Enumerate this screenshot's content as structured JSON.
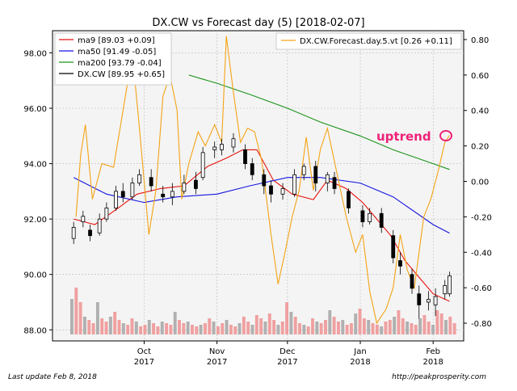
{
  "footer": {
    "last_update": "Last update Feb  8, 2018",
    "source_url": "http://peakprosperity.com"
  },
  "colors": {
    "ma9": "#e8120c",
    "ma50": "#1515e0",
    "ma200": "#1a931a",
    "forecast": "#f4a315",
    "candle_outline": "#000000",
    "volume_up": "#b0b0b0",
    "volume_down": "#f0a0a0",
    "annotation": "#ee2277",
    "plot_bg": "#f4f4f4"
  },
  "chart_data": {
    "type": "line",
    "title": "DX.CW vs Forecast day (5)  [2018-02-07]",
    "annotation": "uptrend",
    "grid": true,
    "legend_placement": "top-left and top-right",
    "x_ticks": [
      {
        "month": "Oct",
        "year": "2017",
        "date": "2017-10-01"
      },
      {
        "month": "Nov",
        "year": "2017",
        "date": "2017-11-01"
      },
      {
        "month": "Dec",
        "year": "2017",
        "date": "2017-12-01"
      },
      {
        "month": "Jan",
        "year": "2018",
        "date": "2018-01-01"
      },
      {
        "month": "Feb",
        "year": "2018",
        "date": "2018-02-01"
      }
    ],
    "x_range": [
      "2017-08-23",
      "2018-02-14"
    ],
    "y_left": {
      "range": [
        87.6,
        98.8
      ],
      "ticks": [
        "88.00",
        "90.00",
        "92.00",
        "94.00",
        "96.00",
        "98.00"
      ]
    },
    "y_right": {
      "range": [
        -0.9,
        0.85
      ],
      "ticks": [
        "-0.80",
        "-0.60",
        "-0.40",
        "-0.20",
        "0.00",
        "0.20",
        "0.40",
        "0.60",
        "0.80"
      ]
    },
    "legend_left": [
      {
        "key": "ma9",
        "label": "ma9 [89.03 +0.09]"
      },
      {
        "key": "ma50",
        "label": "ma50 [91.49 -0.05]"
      },
      {
        "key": "ma200",
        "label": "ma200 [93.79 -0.04]"
      },
      {
        "key": "candle",
        "label": "DX.CW [89.95 +0.65]"
      }
    ],
    "legend_right": {
      "key": "forecast",
      "label": "DX.CW.Forecast.day.5.vt [0.26 +0.11]"
    },
    "series": [
      {
        "name": "ma9",
        "axis": "left",
        "points": [
          [
            "2017-09-01",
            92.0
          ],
          [
            "2017-09-10",
            91.8
          ],
          [
            "2017-09-20",
            92.4
          ],
          [
            "2017-09-28",
            92.9
          ],
          [
            "2017-10-08",
            93.1
          ],
          [
            "2017-10-18",
            93.2
          ],
          [
            "2017-10-28",
            93.9
          ],
          [
            "2017-11-05",
            94.2
          ],
          [
            "2017-11-12",
            94.5
          ],
          [
            "2017-11-18",
            94.5
          ],
          [
            "2017-11-25",
            93.4
          ],
          [
            "2017-12-03",
            92.9
          ],
          [
            "2017-12-12",
            92.7
          ],
          [
            "2017-12-18",
            93.4
          ],
          [
            "2017-12-26",
            93.1
          ],
          [
            "2018-01-02",
            92.6
          ],
          [
            "2018-01-08",
            92.0
          ],
          [
            "2018-01-14",
            91.4
          ],
          [
            "2018-01-20",
            90.5
          ],
          [
            "2018-01-27",
            89.8
          ],
          [
            "2018-02-01",
            89.3
          ],
          [
            "2018-02-08",
            89.03
          ]
        ]
      },
      {
        "name": "ma50",
        "axis": "left",
        "points": [
          [
            "2017-09-01",
            93.5
          ],
          [
            "2017-09-15",
            92.9
          ],
          [
            "2017-10-01",
            92.6
          ],
          [
            "2017-10-15",
            92.8
          ],
          [
            "2017-11-01",
            92.9
          ],
          [
            "2017-11-15",
            93.2
          ],
          [
            "2017-12-01",
            93.5
          ],
          [
            "2017-12-15",
            93.5
          ],
          [
            "2018-01-01",
            93.3
          ],
          [
            "2018-01-15",
            92.8
          ],
          [
            "2018-02-01",
            91.8
          ],
          [
            "2018-02-08",
            91.49
          ]
        ]
      },
      {
        "name": "ma200",
        "axis": "left",
        "points": [
          [
            "2017-10-20",
            97.2
          ],
          [
            "2017-11-01",
            96.9
          ],
          [
            "2017-11-15",
            96.5
          ],
          [
            "2017-12-01",
            96.0
          ],
          [
            "2017-12-15",
            95.5
          ],
          [
            "2018-01-01",
            95.0
          ],
          [
            "2018-01-15",
            94.5
          ],
          [
            "2018-02-01",
            94.0
          ],
          [
            "2018-02-08",
            93.79
          ]
        ]
      },
      {
        "name": "DX.CW.Forecast.day.5.vt",
        "axis": "right",
        "points": [
          [
            "2017-09-02",
            -0.2
          ],
          [
            "2017-09-04",
            0.15
          ],
          [
            "2017-09-06",
            0.32
          ],
          [
            "2017-09-09",
            -0.1
          ],
          [
            "2017-09-13",
            0.1
          ],
          [
            "2017-09-18",
            0.08
          ],
          [
            "2017-09-22",
            0.4
          ],
          [
            "2017-09-26",
            0.72
          ],
          [
            "2017-09-29",
            0.3
          ],
          [
            "2017-10-03",
            -0.3
          ],
          [
            "2017-10-06",
            -0.05
          ],
          [
            "2017-10-09",
            0.48
          ],
          [
            "2017-10-12",
            0.6
          ],
          [
            "2017-10-15",
            0.4
          ],
          [
            "2017-10-17",
            -0.1
          ],
          [
            "2017-10-20",
            0.1
          ],
          [
            "2017-10-24",
            0.28
          ],
          [
            "2017-10-27",
            0.2
          ],
          [
            "2017-10-31",
            0.32
          ],
          [
            "2017-11-03",
            0.22
          ],
          [
            "2017-11-05",
            0.82
          ],
          [
            "2017-11-08",
            0.5
          ],
          [
            "2017-11-11",
            0.22
          ],
          [
            "2017-11-14",
            0.3
          ],
          [
            "2017-11-17",
            0.28
          ],
          [
            "2017-11-20",
            0.12
          ],
          [
            "2017-11-24",
            -0.3
          ],
          [
            "2017-11-27",
            -0.58
          ],
          [
            "2017-11-30",
            -0.4
          ],
          [
            "2017-12-03",
            -0.2
          ],
          [
            "2017-12-06",
            -0.05
          ],
          [
            "2017-12-09",
            0.25
          ],
          [
            "2017-12-12",
            -0.05
          ],
          [
            "2017-12-15",
            0.18
          ],
          [
            "2017-12-18",
            0.3
          ],
          [
            "2017-12-22",
            0.05
          ],
          [
            "2017-12-26",
            -0.2
          ],
          [
            "2017-12-30",
            -0.4
          ],
          [
            "2018-01-02",
            -0.3
          ],
          [
            "2018-01-05",
            -0.62
          ],
          [
            "2018-01-08",
            -0.8
          ],
          [
            "2018-01-12",
            -0.72
          ],
          [
            "2018-01-15",
            -0.6
          ],
          [
            "2018-01-18",
            -0.3
          ],
          [
            "2018-01-21",
            -0.5
          ],
          [
            "2018-01-24",
            -0.6
          ],
          [
            "2018-01-28",
            -0.2
          ],
          [
            "2018-01-31",
            -0.1
          ],
          [
            "2018-02-03",
            0.05
          ],
          [
            "2018-02-06",
            0.22
          ],
          [
            "2018-02-08",
            0.26
          ]
        ]
      }
    ],
    "candles": [
      {
        "date": "2017-09-01",
        "open": 91.3,
        "close": 91.7,
        "high": 91.9,
        "low": 91.1
      },
      {
        "date": "2017-09-05",
        "open": 91.9,
        "close": 92.1,
        "high": 92.3,
        "low": 91.7
      },
      {
        "date": "2017-09-08",
        "open": 91.6,
        "close": 91.4,
        "high": 91.8,
        "low": 91.2
      },
      {
        "date": "2017-09-12",
        "open": 91.5,
        "close": 92.0,
        "high": 92.2,
        "low": 91.4
      },
      {
        "date": "2017-09-15",
        "open": 92.0,
        "close": 92.4,
        "high": 92.6,
        "low": 91.9
      },
      {
        "date": "2017-09-19",
        "open": 92.4,
        "close": 93.0,
        "high": 93.2,
        "low": 92.3
      },
      {
        "date": "2017-09-22",
        "open": 93.0,
        "close": 92.8,
        "high": 93.3,
        "low": 92.6
      },
      {
        "date": "2017-09-26",
        "open": 92.8,
        "close": 93.3,
        "high": 93.5,
        "low": 92.7
      },
      {
        "date": "2017-09-29",
        "open": 93.3,
        "close": 93.6,
        "high": 93.8,
        "low": 93.2
      },
      {
        "date": "2017-10-04",
        "open": 93.5,
        "close": 93.2,
        "high": 93.8,
        "low": 93.0
      },
      {
        "date": "2017-10-09",
        "open": 92.9,
        "close": 92.8,
        "high": 93.2,
        "low": 92.6
      },
      {
        "date": "2017-10-13",
        "open": 92.8,
        "close": 93.0,
        "high": 93.3,
        "low": 92.5
      },
      {
        "date": "2017-10-18",
        "open": 93.0,
        "close": 93.3,
        "high": 93.6,
        "low": 92.9
      },
      {
        "date": "2017-10-23",
        "open": 93.4,
        "close": 93.1,
        "high": 93.7,
        "low": 92.9
      },
      {
        "date": "2017-10-26",
        "open": 93.5,
        "close": 94.4,
        "high": 94.6,
        "low": 93.4
      },
      {
        "date": "2017-10-31",
        "open": 94.5,
        "close": 94.6,
        "high": 94.8,
        "low": 94.2
      },
      {
        "date": "2017-11-03",
        "open": 94.5,
        "close": 94.7,
        "high": 94.9,
        "low": 94.3
      },
      {
        "date": "2017-11-08",
        "open": 94.6,
        "close": 94.9,
        "high": 95.1,
        "low": 94.4
      },
      {
        "date": "2017-11-13",
        "open": 94.5,
        "close": 94.0,
        "high": 94.7,
        "low": 93.8
      },
      {
        "date": "2017-11-16",
        "open": 94.0,
        "close": 93.6,
        "high": 94.2,
        "low": 93.4
      },
      {
        "date": "2017-11-21",
        "open": 93.6,
        "close": 93.2,
        "high": 93.8,
        "low": 92.9
      },
      {
        "date": "2017-11-24",
        "open": 93.2,
        "close": 92.9,
        "high": 93.4,
        "low": 92.6
      },
      {
        "date": "2017-11-29",
        "open": 92.9,
        "close": 93.1,
        "high": 93.3,
        "low": 92.7
      },
      {
        "date": "2017-12-04",
        "open": 92.9,
        "close": 93.6,
        "high": 93.8,
        "low": 92.8
      },
      {
        "date": "2017-12-08",
        "open": 93.6,
        "close": 93.9,
        "high": 94.0,
        "low": 93.4
      },
      {
        "date": "2017-12-13",
        "open": 93.9,
        "close": 93.3,
        "high": 94.1,
        "low": 93.0
      },
      {
        "date": "2017-12-18",
        "open": 93.3,
        "close": 93.6,
        "high": 93.7,
        "low": 93.0
      },
      {
        "date": "2017-12-21",
        "open": 93.5,
        "close": 93.1,
        "high": 93.7,
        "low": 92.9
      },
      {
        "date": "2017-12-27",
        "open": 93.0,
        "close": 92.4,
        "high": 93.1,
        "low": 92.2
      },
      {
        "date": "2018-01-02",
        "open": 92.3,
        "close": 91.9,
        "high": 92.5,
        "low": 91.7
      },
      {
        "date": "2018-01-05",
        "open": 91.9,
        "close": 92.2,
        "high": 92.4,
        "low": 91.8
      },
      {
        "date": "2018-01-10",
        "open": 92.2,
        "close": 91.7,
        "high": 92.4,
        "low": 91.5
      },
      {
        "date": "2018-01-15",
        "open": 91.4,
        "close": 90.6,
        "high": 91.6,
        "low": 90.4
      },
      {
        "date": "2018-01-18",
        "open": 90.5,
        "close": 90.3,
        "high": 90.8,
        "low": 90.0
      },
      {
        "date": "2018-01-23",
        "open": 90.0,
        "close": 89.5,
        "high": 90.2,
        "low": 89.3
      },
      {
        "date": "2018-01-26",
        "open": 89.3,
        "close": 88.9,
        "high": 89.6,
        "low": 88.4
      },
      {
        "date": "2018-01-30",
        "open": 89.0,
        "close": 89.1,
        "high": 89.4,
        "low": 88.7
      },
      {
        "date": "2018-02-02",
        "open": 88.9,
        "close": 89.2,
        "high": 89.5,
        "low": 88.5
      },
      {
        "date": "2018-02-06",
        "open": 89.3,
        "close": 89.6,
        "high": 89.8,
        "low": 89.1
      },
      {
        "date": "2018-02-08",
        "open": 89.3,
        "close": 89.95,
        "high": 90.1,
        "low": 89.2
      }
    ]
  }
}
